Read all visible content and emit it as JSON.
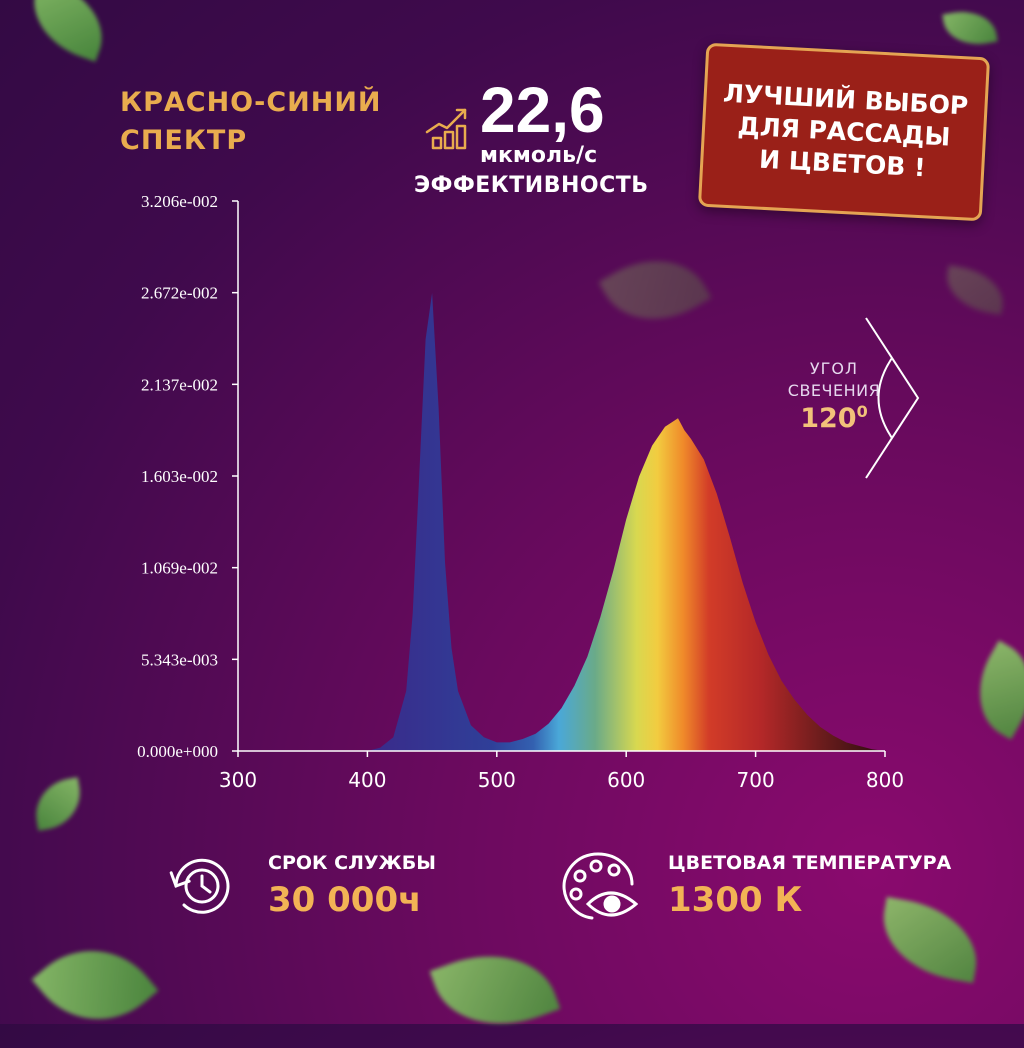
{
  "header": {
    "spectrum_title_line1": "КРАСНО-СИНИЙ",
    "spectrum_title_line2": "СПЕКТР",
    "efficiency_value": "22,6",
    "efficiency_unit": "мкмоль/с",
    "efficiency_label": "ЭФФЕКТИВНОСТЬ",
    "efficiency_icon": "growth-bars-icon"
  },
  "badge": {
    "line1": "ЛУЧШИЙ ВЫБОР",
    "line2": "ДЛЯ РАССАДЫ",
    "line3": "И ЦВЕТОВ !",
    "background_color": "#9a2018",
    "border_color": "#e4a453"
  },
  "angle": {
    "label_line1": "УГОЛ",
    "label_line2": "СВЕЧЕНИЯ",
    "value": "120",
    "unit_symbol": "0"
  },
  "features": [
    {
      "label": "СРОК СЛУЖБЫ",
      "value": "30 000ч",
      "icon": "clock-cycle-icon"
    },
    {
      "label": "ЦВЕТОВАЯ ТЕМПЕРАТУРА",
      "value": "1300 К",
      "icon": "palette-eye-icon"
    }
  ],
  "colors": {
    "accent_gold": "#e9ac4e",
    "value_gold": "#f2b355",
    "background_dark": "#330a44",
    "background_magenta": "#8a0a6e"
  },
  "chart_data": {
    "type": "area",
    "title": "",
    "xlabel": "",
    "ylabel": "",
    "xlim": [
      300,
      800
    ],
    "ylim": [
      0,
      0.03206
    ],
    "x_ticks": [
      "300",
      "400",
      "500",
      "600",
      "700",
      "800"
    ],
    "y_ticks": [
      "0.000e+000",
      "5.343e-003",
      "1.069e-002",
      "1.603e-002",
      "2.137e-002",
      "2.672e-002",
      "3.206e-002"
    ],
    "grid": false,
    "legend": "none",
    "series": [
      {
        "x": [
          400,
          410,
          420,
          430,
          435,
          440,
          445,
          450,
          455,
          460,
          465,
          470,
          480,
          490,
          500,
          510,
          520,
          530,
          540,
          550,
          560,
          570,
          580,
          590,
          600,
          610,
          620,
          630,
          640,
          645,
          650,
          660,
          670,
          680,
          690,
          700,
          710,
          720,
          730,
          740,
          750,
          760,
          770,
          780,
          790,
          800
        ],
        "values": [
          0.0,
          0.0002,
          0.0008,
          0.0035,
          0.008,
          0.016,
          0.024,
          0.0267,
          0.02,
          0.011,
          0.006,
          0.0035,
          0.0015,
          0.0008,
          0.0005,
          0.0005,
          0.0007,
          0.001,
          0.0016,
          0.0025,
          0.0038,
          0.0055,
          0.0078,
          0.0105,
          0.0135,
          0.016,
          0.0178,
          0.0189,
          0.0194,
          0.0187,
          0.0182,
          0.017,
          0.015,
          0.0125,
          0.0098,
          0.0075,
          0.0056,
          0.0041,
          0.003,
          0.0021,
          0.0014,
          0.0009,
          0.0005,
          0.0003,
          0.0001,
          0.0
        ]
      }
    ]
  }
}
